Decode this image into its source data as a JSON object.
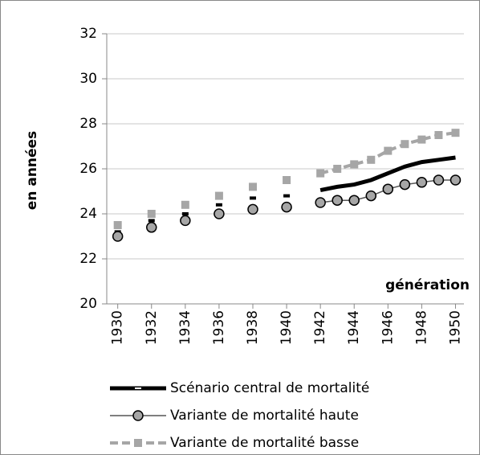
{
  "chart_data": {
    "type": "line",
    "y_label": "en années",
    "x_label": "génération",
    "x": [
      1930,
      1931,
      1932,
      1933,
      1934,
      1935,
      1936,
      1937,
      1938,
      1939,
      1940,
      1941,
      1942,
      1943,
      1944,
      1945,
      1946,
      1947,
      1948,
      1949,
      1950
    ],
    "series": [
      {
        "name": "Scénario central de mortalité",
        "color": "#000000",
        "marker": "dash",
        "linestyle": "solid",
        "width": 5,
        "values": [
          23.2,
          null,
          23.7,
          null,
          24.0,
          null,
          24.4,
          null,
          24.7,
          null,
          24.8,
          null,
          25.05,
          25.2,
          25.3,
          25.5,
          25.8,
          26.1,
          26.3,
          26.4,
          26.5
        ]
      },
      {
        "name": "Variante de mortalité haute",
        "color": "#555555",
        "marker": "circle",
        "linestyle": "solid",
        "width": 1.5,
        "values": [
          23.0,
          null,
          23.4,
          null,
          23.7,
          null,
          24.0,
          null,
          24.2,
          null,
          24.3,
          null,
          24.5,
          24.6,
          24.6,
          24.8,
          25.1,
          25.3,
          25.4,
          25.5,
          25.5
        ]
      },
      {
        "name": "Variante de mortalité basse",
        "color": "#a6a6a6",
        "marker": "square",
        "linestyle": "dashed",
        "width": 4,
        "values": [
          23.5,
          null,
          24.0,
          null,
          24.4,
          null,
          24.8,
          null,
          25.2,
          null,
          25.5,
          null,
          25.8,
          26.0,
          26.2,
          26.4,
          26.8,
          27.1,
          27.3,
          27.5,
          27.6
        ]
      }
    ],
    "xlim": [
      1929.35,
      1950.5
    ],
    "ylim": [
      20,
      32
    ],
    "xticks": [
      1930,
      1932,
      1934,
      1936,
      1938,
      1940,
      1942,
      1944,
      1946,
      1948,
      1950
    ],
    "yticks": [
      20,
      22,
      24,
      26,
      28,
      30,
      32
    ],
    "grid": true
  }
}
